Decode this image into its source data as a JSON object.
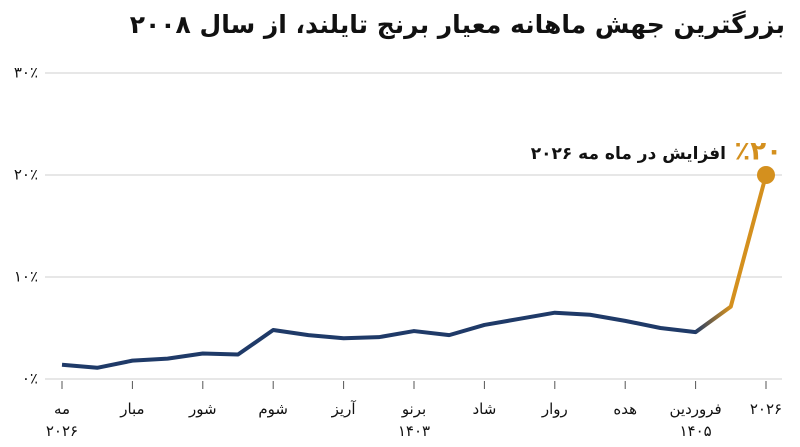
{
  "chart_data": {
    "type": "line",
    "title": "بزرگترین جهش ماهانه معیار برنج تایلند، از سال ۲۰۰۸",
    "annotation": {
      "value_label": "٪۲۰",
      "text": "افزایش در ماه مه ۲۰۲۶"
    },
    "categories": [
      "مه\n۲۰۲۶",
      null,
      "مبار",
      null,
      "شور",
      null,
      "شوم",
      null,
      "آریز",
      null,
      "برنو\n۱۴۰۳",
      null,
      "شاد",
      null,
      "روار",
      null,
      "هده",
      null,
      "فروردین\n۱۴۰۵",
      null,
      "۲۰۲۶"
    ],
    "series": [
      {
        "color": "#1f3a68",
        "highlight_color": "#d4901e",
        "values": [
          1.4,
          1.1,
          1.8,
          2.0,
          2.5,
          2.4,
          4.8,
          4.3,
          4.0,
          4.1,
          4.7,
          4.3,
          5.3,
          5.9,
          6.5,
          6.3,
          5.7,
          5.0,
          4.6,
          7.1,
          20
        ]
      }
    ],
    "ylim": [
      0,
      30
    ],
    "yticks": [
      {
        "value": 0,
        "label": "۰٪"
      },
      {
        "value": 10,
        "label": "۱۰٪"
      },
      {
        "value": 20,
        "label": "۲۰٪"
      },
      {
        "value": 30,
        "label": "۳۰٪"
      }
    ],
    "grid": true
  }
}
